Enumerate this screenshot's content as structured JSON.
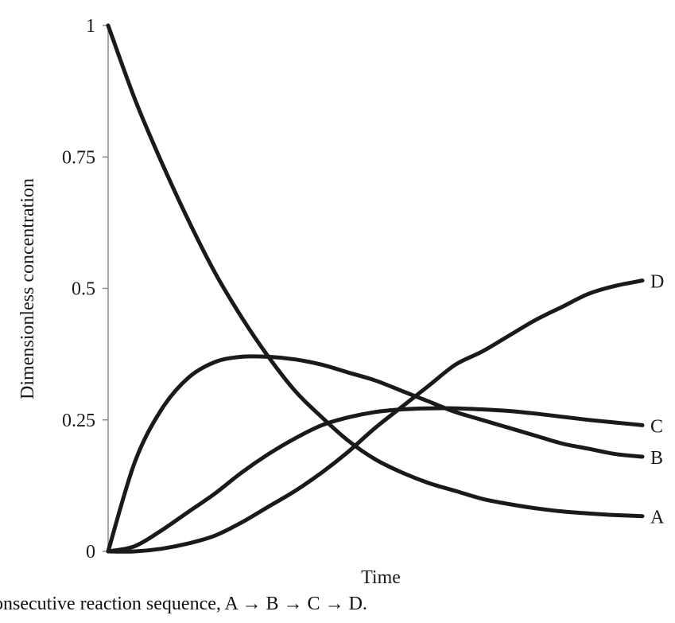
{
  "chart_data": {
    "type": "line",
    "xlabel": "Time",
    "ylabel": "Dimensionless concentration",
    "ylim": [
      0,
      1
    ],
    "yticks": [
      {
        "value": 0,
        "label": "0"
      },
      {
        "value": 0.25,
        "label": "0.25"
      },
      {
        "value": 0.5,
        "label": "0.5"
      },
      {
        "value": 0.75,
        "label": "0.75"
      },
      {
        "value": 1,
        "label": "1"
      }
    ],
    "x": [
      0,
      0.5,
      1,
      1.5,
      2,
      2.5,
      3,
      3.5,
      4,
      4.5,
      5,
      5.5,
      6,
      6.5,
      7,
      7.5,
      8,
      8.5,
      9,
      9.5,
      10
    ],
    "xlim": [
      0,
      10
    ],
    "grid": false,
    "legend": "none",
    "color": "#1a1a1a",
    "series": [
      {
        "name": "A",
        "values": [
          1.0,
          0.86,
          0.74,
          0.63,
          0.53,
          0.445,
          0.37,
          0.305,
          0.255,
          0.21,
          0.175,
          0.15,
          0.13,
          0.115,
          0.1,
          0.09,
          0.082,
          0.076,
          0.072,
          0.069,
          0.067
        ]
      },
      {
        "name": "B",
        "values": [
          0.0,
          0.17,
          0.27,
          0.33,
          0.36,
          0.37,
          0.37,
          0.365,
          0.355,
          0.34,
          0.325,
          0.305,
          0.285,
          0.265,
          0.25,
          0.235,
          0.22,
          0.205,
          0.195,
          0.185,
          0.18
        ]
      },
      {
        "name": "C",
        "values": [
          0.0,
          0.01,
          0.04,
          0.075,
          0.11,
          0.15,
          0.185,
          0.215,
          0.24,
          0.255,
          0.265,
          0.27,
          0.272,
          0.272,
          0.27,
          0.267,
          0.262,
          0.256,
          0.25,
          0.245,
          0.24
        ]
      },
      {
        "name": "D",
        "values": [
          0.0,
          0.0,
          0.005,
          0.015,
          0.03,
          0.055,
          0.085,
          0.115,
          0.15,
          0.19,
          0.235,
          0.275,
          0.315,
          0.355,
          0.38,
          0.41,
          0.44,
          0.465,
          0.49,
          0.505,
          0.515
        ]
      }
    ]
  },
  "caption": "onsecutive reaction sequence, A → B → C → D."
}
